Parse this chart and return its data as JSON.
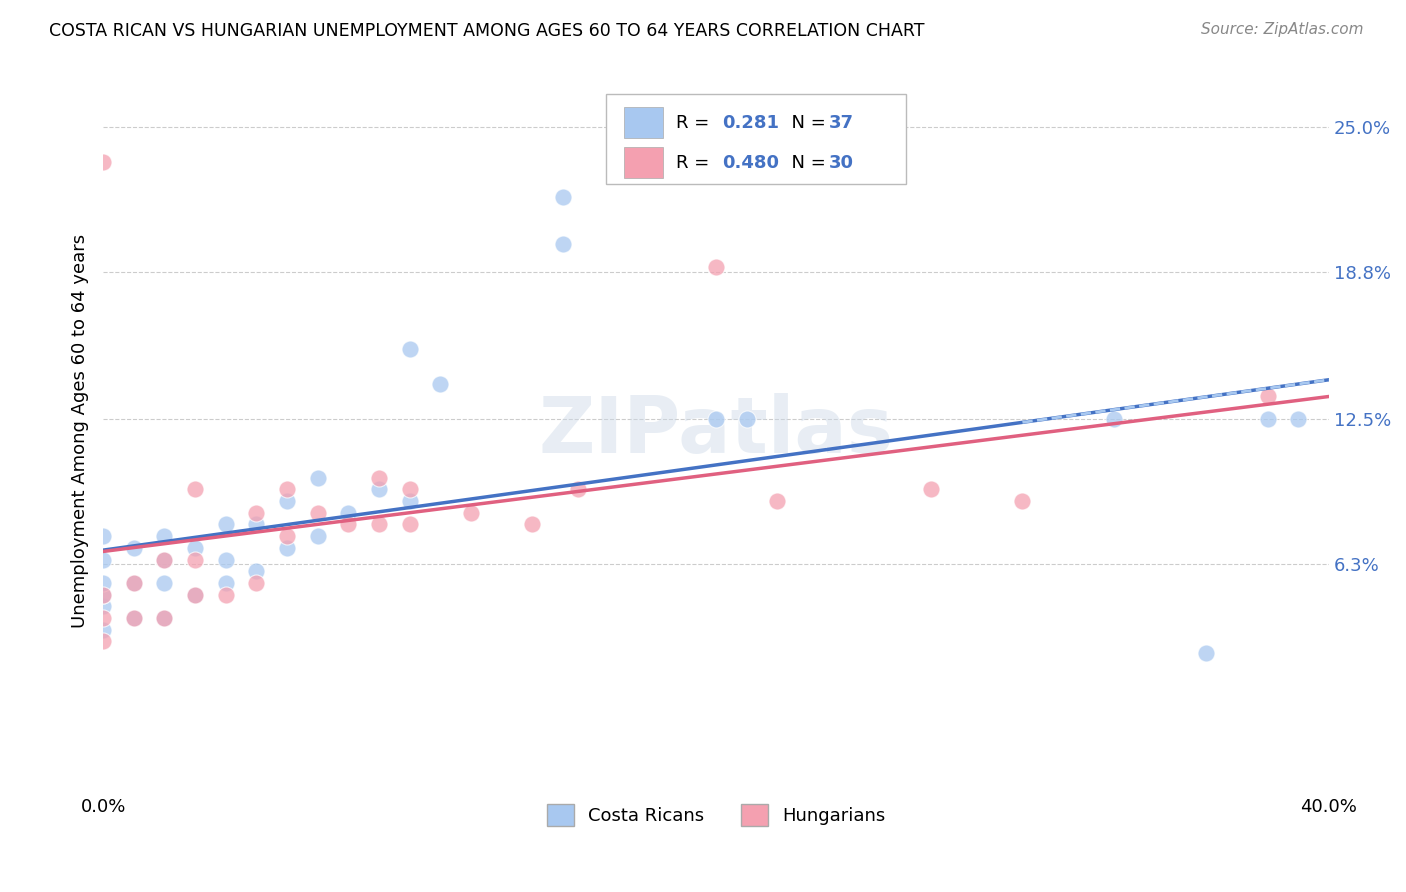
{
  "title": "COSTA RICAN VS HUNGARIAN UNEMPLOYMENT AMONG AGES 60 TO 64 YEARS CORRELATION CHART",
  "source": "Source: ZipAtlas.com",
  "ylabel": "Unemployment Among Ages 60 to 64 years",
  "x_min": 0.0,
  "x_max": 0.4,
  "y_min": -0.035,
  "y_max": 0.275,
  "y_tick_labels_right": [
    "6.3%",
    "12.5%",
    "18.8%",
    "25.0%"
  ],
  "y_tick_values_right": [
    0.063,
    0.125,
    0.188,
    0.25
  ],
  "r_costa": 0.281,
  "n_costa": 37,
  "r_hung": 0.48,
  "n_hung": 30,
  "color_costa": "#a8c8f0",
  "color_hung": "#f4a0b0",
  "line_color_costa": "#4472c4",
  "line_color_hung": "#e06080",
  "line_color_costa_label": "#4472c4",
  "costa_x": [
    0.0,
    0.0,
    0.0,
    0.0,
    0.0,
    0.0,
    0.01,
    0.01,
    0.01,
    0.02,
    0.02,
    0.02,
    0.02,
    0.03,
    0.03,
    0.04,
    0.04,
    0.04,
    0.05,
    0.05,
    0.06,
    0.06,
    0.07,
    0.07,
    0.08,
    0.09,
    0.1,
    0.1,
    0.11,
    0.15,
    0.15,
    0.2,
    0.21,
    0.33,
    0.36,
    0.38,
    0.39
  ],
  "costa_y": [
    0.035,
    0.045,
    0.05,
    0.055,
    0.065,
    0.075,
    0.04,
    0.055,
    0.07,
    0.04,
    0.055,
    0.065,
    0.075,
    0.05,
    0.07,
    0.055,
    0.065,
    0.08,
    0.06,
    0.08,
    0.07,
    0.09,
    0.075,
    0.1,
    0.085,
    0.095,
    0.09,
    0.155,
    0.14,
    0.2,
    0.22,
    0.125,
    0.125,
    0.125,
    0.025,
    0.125,
    0.125
  ],
  "hung_x": [
    0.0,
    0.0,
    0.0,
    0.0,
    0.01,
    0.01,
    0.02,
    0.02,
    0.03,
    0.03,
    0.03,
    0.04,
    0.05,
    0.05,
    0.06,
    0.06,
    0.07,
    0.08,
    0.09,
    0.09,
    0.1,
    0.1,
    0.12,
    0.14,
    0.155,
    0.2,
    0.22,
    0.27,
    0.3,
    0.38
  ],
  "hung_y": [
    0.03,
    0.04,
    0.05,
    0.235,
    0.04,
    0.055,
    0.04,
    0.065,
    0.05,
    0.065,
    0.095,
    0.05,
    0.055,
    0.085,
    0.075,
    0.095,
    0.085,
    0.08,
    0.08,
    0.1,
    0.08,
    0.095,
    0.085,
    0.08,
    0.095,
    0.19,
    0.09,
    0.095,
    0.09,
    0.135
  ]
}
